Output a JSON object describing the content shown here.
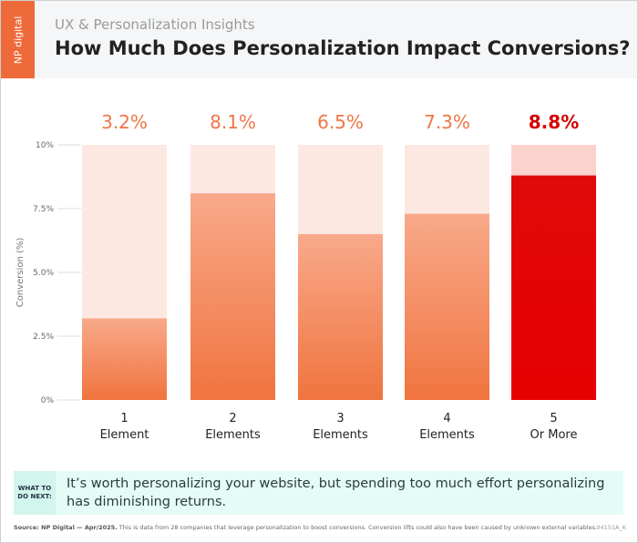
{
  "header": {
    "logo_text": "NP digital",
    "subtitle": "UX & Personalization Insights",
    "title": "How Much Does Personalization Impact Conversions?"
  },
  "chart_data": {
    "type": "bar",
    "title": "How Much Does Personalization Impact Conversions?",
    "ylabel": "Conversion (%)",
    "ylim": [
      0,
      10
    ],
    "yticks": [
      "0%",
      "2.5%",
      "5.0%",
      "7.5%",
      "10%"
    ],
    "categories": [
      [
        "1",
        "Element"
      ],
      [
        "2",
        "Elements"
      ],
      [
        "3",
        "Elements"
      ],
      [
        "4",
        "Elements"
      ],
      [
        "5",
        "Or More"
      ]
    ],
    "values": [
      3.2,
      8.1,
      6.5,
      7.3,
      8.8
    ],
    "data_labels": [
      "3.2%",
      "8.1%",
      "6.5%",
      "7.3%",
      "8.8%"
    ],
    "highlight_index": 4,
    "colors": {
      "bar": "#f0743f",
      "bar_top": "#f8a98a",
      "bar_bg": "#fde8e1",
      "highlight": "#e00000",
      "highlight_bg": "#fcd3cc",
      "label": "#ef7545",
      "highlight_label": "#d40000"
    }
  },
  "note": {
    "label": "WHAT TO DO NEXT:",
    "text": "It’s worth personalizing your website, but spending too much effort personalizing has diminishing returns."
  },
  "footer": {
    "source_bold": "Source: NP Digital — Apr/2025.",
    "source_text": " This is data from 28 companies that leverage personalization to boost conversions. Conversion lifts could also have been caused by unknown external variables.",
    "code": "04151A_K"
  }
}
